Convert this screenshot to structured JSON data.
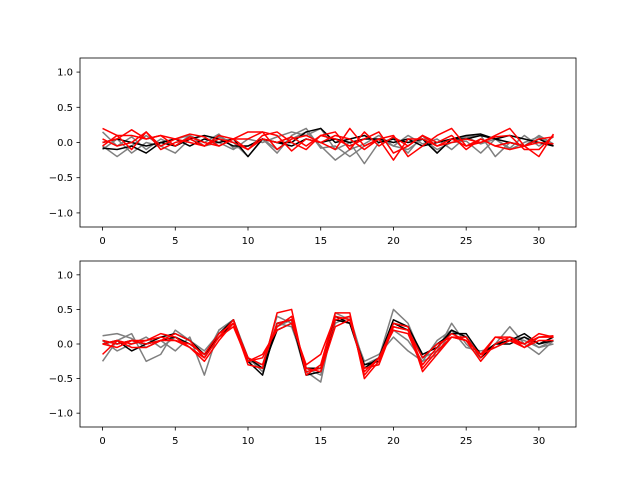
{
  "chart_data": [
    {
      "type": "line",
      "x": [
        0,
        1,
        2,
        3,
        4,
        5,
        6,
        7,
        8,
        9,
        10,
        11,
        12,
        13,
        14,
        15,
        16,
        17,
        18,
        19,
        20,
        21,
        22,
        23,
        24,
        25,
        26,
        27,
        28,
        29,
        30,
        31
      ],
      "xlim": [
        -1.55,
        32.55
      ],
      "ylim": [
        -1.2,
        1.2
      ],
      "xticks": [
        0,
        5,
        10,
        15,
        20,
        25,
        30
      ],
      "yticks": [
        -1.0,
        -0.5,
        0.0,
        0.5,
        1.0
      ],
      "xtick_labels": [
        "0",
        "5",
        "10",
        "15",
        "20",
        "25",
        "30"
      ],
      "ytick_labels": [
        "−1.0",
        "−0.5",
        "0.0",
        "0.5",
        "1.0"
      ],
      "grid": false,
      "series": [
        {
          "color": "#7f7f7f",
          "values": [
            0.15,
            -0.05,
            0.08,
            -0.1,
            0.05,
            -0.05,
            0.1,
            0.0,
            0.12,
            -0.08,
            -0.05,
            0.05,
            -0.1,
            0.05,
            0.15,
            -0.05,
            -0.25,
            -0.1,
            -0.02,
            0.1,
            -0.05,
            0.1,
            -0.02,
            0.05,
            -0.1,
            0.08,
            -0.02,
            0.05,
            -0.08,
            0.1,
            -0.05,
            0.08
          ]
        },
        {
          "color": "#7f7f7f",
          "values": [
            -0.05,
            -0.2,
            -0.05,
            0.1,
            -0.05,
            -0.15,
            0.05,
            -0.05,
            0.08,
            0.0,
            -0.2,
            0.05,
            -0.15,
            0.1,
            0.2,
            -0.08,
            -0.05,
            -0.2,
            -0.05,
            0.05,
            -0.05,
            -0.1,
            0.05,
            -0.1,
            0.0,
            0.02,
            -0.15,
            0.05,
            -0.1,
            0.0,
            0.08,
            -0.05
          ]
        },
        {
          "color": "#7f7f7f",
          "values": [
            -0.1,
            0.05,
            -0.15,
            0.0,
            -0.05,
            0.05,
            0.1,
            -0.05,
            0.0,
            -0.1,
            0.05,
            0.0,
            0.08,
            0.15,
            0.1,
            0.2,
            -0.1,
            0.0,
            -0.3,
            0.0,
            0.05,
            -0.15,
            0.1,
            -0.15,
            0.05,
            0.08,
            0.1,
            -0.2,
            0.0,
            -0.05,
            0.1,
            -0.02
          ]
        },
        {
          "color": "#000000",
          "values": [
            -0.08,
            -0.1,
            -0.05,
            -0.15,
            0.0,
            0.05,
            -0.05,
            0.05,
            0.0,
            0.05,
            -0.2,
            0.05,
            0.0,
            0.0,
            0.15,
            0.2,
            0.0,
            0.05,
            0.1,
            0.0,
            0.05,
            0.0,
            0.05,
            -0.15,
            0.05,
            0.05,
            0.1,
            0.05,
            0.0,
            -0.05,
            0.05,
            -0.05
          ]
        },
        {
          "color": "#000000",
          "values": [
            0.0,
            0.05,
            0.0,
            -0.05,
            0.0,
            -0.05,
            0.05,
            0.1,
            0.05,
            -0.05,
            -0.05,
            0.05,
            0.0,
            -0.05,
            0.05,
            0.0,
            0.05,
            0.0,
            0.05,
            0.05,
            0.0,
            0.05,
            -0.05,
            0.0,
            0.05,
            0.1,
            0.12,
            0.05,
            0.1,
            0.05,
            0.0,
            -0.05
          ]
        },
        {
          "color": "#ff0000",
          "values": [
            0.2,
            0.1,
            -0.1,
            0.15,
            -0.05,
            0.05,
            0.12,
            0.08,
            -0.05,
            0.05,
            -0.1,
            0.1,
            0.15,
            0.0,
            -0.1,
            0.1,
            0.05,
            -0.05,
            0.05,
            0.15,
            -0.15,
            -0.05,
            0.1,
            0.0,
            0.1,
            -0.1,
            0.05,
            -0.05,
            -0.1,
            -0.05,
            -0.2,
            0.12
          ]
        },
        {
          "color": "#ff0000",
          "values": [
            0.0,
            0.05,
            0.18,
            0.05,
            0.1,
            -0.05,
            0.08,
            0.0,
            -0.05,
            0.05,
            0.15,
            0.15,
            -0.1,
            0.05,
            0.1,
            0.0,
            -0.1,
            0.2,
            -0.05,
            0.05,
            0.1,
            -0.2,
            -0.05,
            0.1,
            0.2,
            -0.05,
            0.0,
            0.1,
            0.2,
            -0.05,
            0.05,
            0.08
          ]
        },
        {
          "color": "#ff0000",
          "values": [
            0.05,
            -0.05,
            0.0,
            0.15,
            -0.1,
            0.0,
            0.05,
            -0.05,
            0.05,
            0.0,
            -0.1,
            0.05,
            0.0,
            0.08,
            -0.05,
            0.1,
            0.15,
            -0.1,
            0.15,
            -0.05,
            0.08,
            -0.05,
            0.1,
            -0.05,
            0.0,
            0.05,
            0.0,
            0.08,
            0.1,
            -0.1,
            -0.1,
            0.1
          ]
        },
        {
          "color": "#ff0000",
          "values": [
            -0.05,
            0.1,
            0.1,
            0.05,
            0.1,
            0.05,
            0.0,
            -0.05,
            0.1,
            0.05,
            0.05,
            0.15,
            0.1,
            -0.12,
            0.05,
            0.0,
            0.1,
            0.05,
            -0.1,
            0.05,
            -0.25,
            0.05,
            0.05,
            -0.05,
            0.05,
            -0.05,
            0.05,
            -0.05,
            0.0,
            -0.05,
            0.0,
            -0.02
          ]
        }
      ]
    },
    {
      "type": "line",
      "x": [
        0,
        1,
        2,
        3,
        4,
        5,
        6,
        7,
        8,
        9,
        10,
        11,
        12,
        13,
        14,
        15,
        16,
        17,
        18,
        19,
        20,
        21,
        22,
        23,
        24,
        25,
        26,
        27,
        28,
        29,
        30,
        31
      ],
      "xlim": [
        -1.55,
        32.55
      ],
      "ylim": [
        -1.2,
        1.2
      ],
      "xticks": [
        0,
        5,
        10,
        15,
        20,
        25,
        30
      ],
      "yticks": [
        -1.0,
        -0.5,
        0.0,
        0.5,
        1.0
      ],
      "xtick_labels": [
        "0",
        "5",
        "10",
        "15",
        "20",
        "25",
        "30"
      ],
      "ytick_labels": [
        "−1.0",
        "−0.5",
        "0.0",
        "0.5",
        "1.0"
      ],
      "grid": false,
      "series": [
        {
          "color": "#7f7f7f",
          "values": [
            0.12,
            0.15,
            0.08,
            -0.05,
            0.05,
            -0.1,
            0.1,
            -0.45,
            0.2,
            0.35,
            -0.2,
            -0.4,
            0.25,
            0.35,
            -0.4,
            -0.55,
            0.45,
            0.35,
            -0.35,
            -0.2,
            0.5,
            0.3,
            -0.2,
            -0.1,
            0.3,
            0.0,
            -0.2,
            0.0,
            0.25,
            0.0,
            -0.15,
            0.05
          ]
        },
        {
          "color": "#7f7f7f",
          "values": [
            -0.25,
            0.05,
            0.15,
            -0.25,
            -0.15,
            0.2,
            0.05,
            -0.1,
            0.15,
            0.3,
            -0.25,
            -0.3,
            0.4,
            0.3,
            -0.45,
            -0.4,
            0.3,
            0.4,
            -0.3,
            -0.2,
            0.2,
            0.05,
            -0.25,
            -0.15,
            0.2,
            0.1,
            -0.15,
            0.0,
            0.1,
            0.05,
            -0.05,
            0.05
          ]
        },
        {
          "color": "#7f7f7f",
          "values": [
            0.05,
            -0.1,
            0.0,
            0.1,
            -0.05,
            0.1,
            -0.05,
            -0.2,
            0.2,
            0.35,
            -0.2,
            -0.35,
            0.3,
            0.25,
            -0.35,
            -0.45,
            0.35,
            0.3,
            -0.25,
            -0.15,
            0.1,
            -0.1,
            -0.25,
            0.05,
            0.2,
            -0.05,
            -0.1,
            -0.05,
            0.05,
            0.1,
            -0.05,
            0.0
          ]
        },
        {
          "color": "#000000",
          "values": [
            0.05,
            0.0,
            0.05,
            0.0,
            0.1,
            0.15,
            0.05,
            -0.15,
            0.15,
            0.35,
            -0.25,
            -0.45,
            0.3,
            0.35,
            -0.45,
            -0.4,
            0.35,
            0.3,
            -0.35,
            -0.2,
            0.35,
            0.25,
            -0.15,
            -0.05,
            0.2,
            0.1,
            -0.2,
            0.0,
            0.0,
            0.1,
            0.0,
            0.1
          ]
        },
        {
          "color": "#000000",
          "values": [
            0.0,
            0.05,
            -0.1,
            0.0,
            0.05,
            0.1,
            0.0,
            -0.15,
            0.1,
            0.3,
            -0.2,
            -0.35,
            0.2,
            0.3,
            -0.35,
            -0.35,
            0.4,
            0.3,
            -0.3,
            -0.25,
            0.3,
            0.2,
            -0.2,
            0.0,
            0.15,
            0.15,
            -0.15,
            0.0,
            0.05,
            0.15,
            0.0,
            0.05
          ]
        },
        {
          "color": "#ff0000",
          "values": [
            -0.15,
            0.05,
            0.0,
            0.05,
            0.1,
            0.05,
            -0.05,
            -0.2,
            0.1,
            0.25,
            -0.25,
            -0.2,
            0.25,
            0.4,
            -0.4,
            -0.35,
            0.35,
            0.4,
            -0.45,
            -0.2,
            0.2,
            0.15,
            -0.35,
            -0.1,
            0.1,
            0.05,
            -0.25,
            0.0,
            0.1,
            -0.05,
            0.1,
            0.1
          ]
        },
        {
          "color": "#ff0000",
          "values": [
            0.0,
            -0.05,
            0.05,
            0.05,
            0.15,
            0.1,
            -0.05,
            -0.25,
            0.05,
            0.3,
            -0.3,
            -0.35,
            0.45,
            0.5,
            -0.45,
            -0.3,
            0.45,
            0.45,
            -0.5,
            -0.25,
            0.3,
            0.25,
            -0.4,
            -0.15,
            0.1,
            0.1,
            -0.2,
            0.1,
            0.1,
            0.0,
            0.15,
            0.1
          ]
        },
        {
          "color": "#ff0000",
          "values": [
            0.05,
            0.0,
            0.05,
            0.0,
            0.05,
            0.15,
            0.05,
            -0.2,
            0.1,
            0.35,
            -0.25,
            -0.15,
            0.2,
            0.3,
            -0.3,
            -0.15,
            0.4,
            0.35,
            -0.4,
            -0.2,
            0.25,
            0.2,
            -0.3,
            -0.05,
            0.15,
            0.05,
            -0.15,
            0.1,
            0.05,
            -0.05,
            0.05,
            0.05
          ]
        },
        {
          "color": "#ff0000",
          "values": [
            0.0,
            0.05,
            -0.05,
            -0.05,
            0.05,
            0.05,
            0.0,
            -0.15,
            0.15,
            0.3,
            -0.2,
            -0.3,
            0.3,
            0.35,
            -0.35,
            -0.4,
            0.25,
            0.35,
            -0.35,
            -0.3,
            0.25,
            0.2,
            -0.2,
            0.0,
            0.1,
            0.05,
            -0.15,
            -0.05,
            0.05,
            0.0,
            0.1,
            0.12
          ]
        }
      ]
    }
  ]
}
